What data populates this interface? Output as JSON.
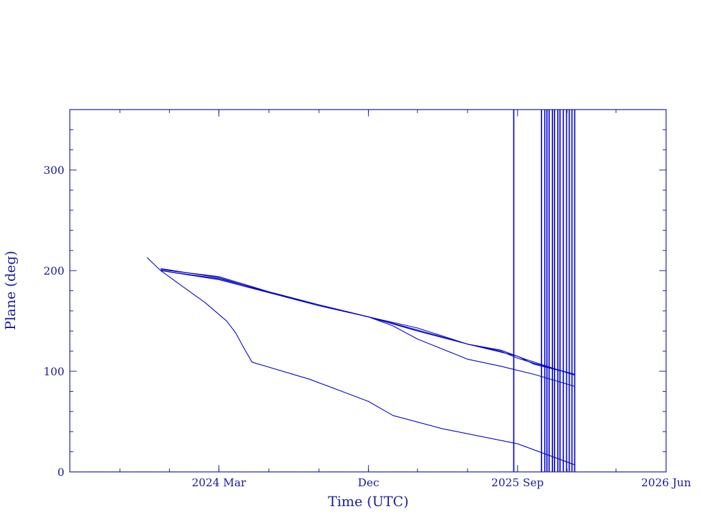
{
  "chart_data": {
    "type": "line",
    "xlabel": "Time (UTC)",
    "ylabel": "Plane (deg)",
    "ylim": [
      0,
      360
    ],
    "y_ticks": [
      0,
      100,
      200,
      300
    ],
    "x_ticks": [
      {
        "date": "2024-03-01",
        "label": "2024 Mar"
      },
      {
        "date": "2024-12-01",
        "label": "Dec"
      },
      {
        "date": "2025-09-01",
        "label": "2025 Sep"
      },
      {
        "date": "2026-06-01",
        "label": "2026 Jun"
      }
    ],
    "xlim": [
      "2023-06-01",
      "2026-06-01"
    ],
    "grid": false,
    "series": [
      {
        "x": [
          "2023-10-21",
          "2023-11-15",
          "2024-02-05",
          "2024-03-15",
          "2024-04-01",
          "2024-04-15",
          "2024-05-01",
          "2024-08-15",
          "2024-12-01",
          "2025-01-15",
          "2025-04-15",
          "2025-09-01",
          "2025-12-15"
        ],
        "values": [
          213,
          200,
          168,
          150,
          138,
          124,
          109,
          92,
          70,
          56,
          43,
          28,
          7
        ]
      },
      {
        "x": [
          "2023-11-15",
          "2024-03-01",
          "2024-06-01",
          "2024-09-01",
          "2024-12-01",
          "2025-01-15",
          "2025-03-01",
          "2025-06-01",
          "2025-08-01",
          "2025-10-01",
          "2025-12-15"
        ],
        "values": [
          200,
          191,
          178,
          166,
          154,
          145,
          132,
          112,
          105,
          97,
          85
        ]
      },
      {
        "x": [
          "2023-11-15",
          "2024-03-01",
          "2024-06-01",
          "2024-09-01",
          "2024-12-01",
          "2025-03-01",
          "2025-06-01",
          "2025-08-01",
          "2025-09-01",
          "2025-10-01",
          "2025-12-15"
        ],
        "values": [
          202,
          193,
          178,
          165,
          154,
          143,
          127,
          120,
          113,
          108,
          97
        ]
      },
      {
        "x": [
          "2023-11-15",
          "2024-03-01",
          "2024-06-01",
          "2024-09-01",
          "2024-12-01",
          "2025-03-01",
          "2025-06-01",
          "2025-09-01",
          "2025-10-01",
          "2025-12-15"
        ],
        "values": [
          201,
          194,
          179,
          166,
          154,
          140,
          127,
          115,
          107,
          97
        ]
      },
      {
        "x": [
          "2023-11-15",
          "2024-03-01",
          "2024-06-01",
          "2024-09-01",
          "2024-12-01",
          "2025-03-01",
          "2025-06-01",
          "2025-08-01",
          "2025-09-15",
          "2025-12-15"
        ],
        "values": [
          200,
          192,
          179,
          166,
          154,
          141,
          127,
          121,
          112,
          96
        ]
      }
    ],
    "vertical_markers": [
      "2025-08-25",
      "2025-10-15",
      "2025-10-21",
      "2025-10-25",
      "2025-10-29",
      "2025-11-04",
      "2025-11-08",
      "2025-11-14",
      "2025-11-18",
      "2025-11-24",
      "2025-11-30",
      "2025-12-05",
      "2025-12-10",
      "2025-12-15"
    ],
    "colors": {
      "axes": "#1a1a9c",
      "series": "#0000c8",
      "marker": "#1010d0"
    }
  }
}
